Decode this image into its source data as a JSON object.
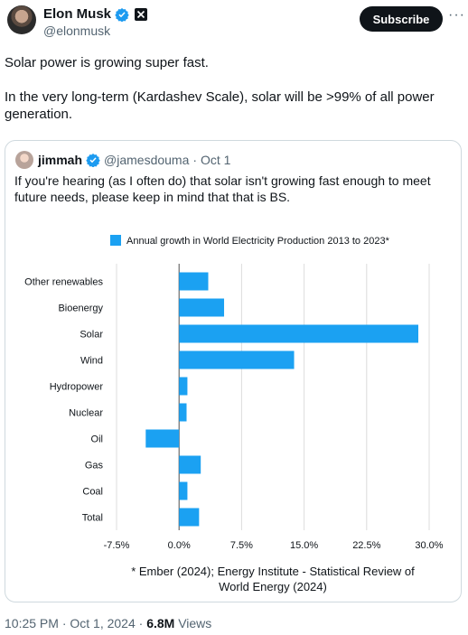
{
  "author": {
    "name": "Elon Musk",
    "handle": "@elonmusk"
  },
  "header": {
    "subscribe_label": "Subscribe",
    "more_label": "···"
  },
  "tweet": {
    "paragraphs": [
      "Solar power is growing super fast.",
      "In the very long-term (Kardashev Scale), solar will be >99% of all power generation."
    ]
  },
  "quote": {
    "name": "jimmah",
    "handle": "@jamesdouma",
    "date": "· Oct 1",
    "text": "If you're hearing (as I often do) that solar isn't growing fast enough to meet future needs, please keep in mind that that is BS."
  },
  "chart_data": {
    "type": "bar",
    "orientation": "horizontal",
    "legend": "Annual growth in World Electricity Production 2013 to 2023*",
    "categories": [
      "Other renewables",
      "Bioenergy",
      "Solar",
      "Wind",
      "Hydropower",
      "Nuclear",
      "Oil",
      "Gas",
      "Coal",
      "Total"
    ],
    "values": [
      3.5,
      5.4,
      28.7,
      13.8,
      1.0,
      0.9,
      -4.0,
      2.6,
      1.0,
      2.4
    ],
    "xlim": [
      -7.5,
      30.0
    ],
    "xticks": [
      "-7.5%",
      "0.0%",
      "7.5%",
      "15.0%",
      "22.5%",
      "30.0%"
    ],
    "grid": true,
    "bar_color": "#1ba1f2",
    "footnote": [
      "* Ember (2024); Energy Institute - Statistical Review of",
      "World Energy (2024)"
    ]
  },
  "footer": {
    "timestamp": "10:25 PM · Oct 1, 2024 · ",
    "views_count": "6.8M",
    "views_label": " Views"
  }
}
